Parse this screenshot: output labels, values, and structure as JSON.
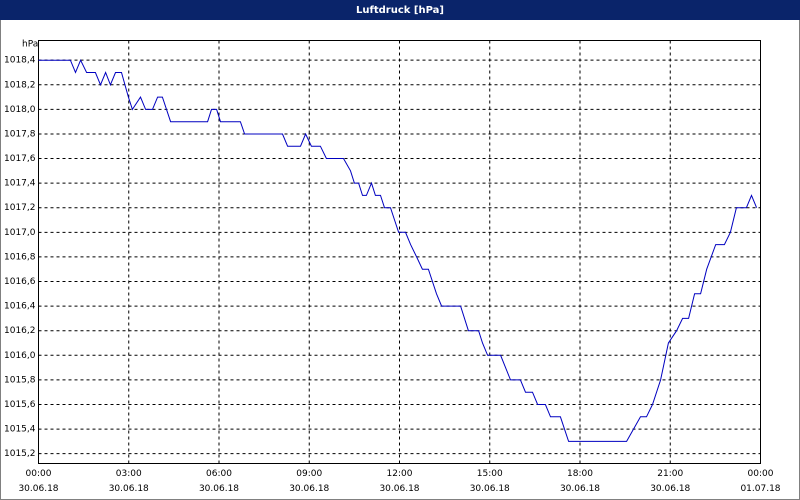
{
  "chart_data": {
    "type": "line",
    "title": "Luftdruck [hPa]",
    "y_label": "hPa",
    "x": [
      0,
      1.06,
      1.23,
      1.4,
      1.6,
      1.89,
      2.06,
      2.23,
      2.39,
      2.56,
      2.76,
      2.99,
      3.12,
      3.39,
      3.56,
      3.79,
      3.96,
      4.12,
      4.39,
      5.62,
      5.75,
      5.92,
      6.05,
      6.71,
      6.85,
      8.11,
      8.28,
      8.71,
      8.88,
      9.07,
      9.37,
      9.57,
      10.14,
      10.37,
      10.5,
      10.64,
      10.77,
      10.9,
      11.07,
      11.2,
      11.37,
      11.5,
      11.7,
      11.97,
      12.2,
      12.37,
      12.57,
      12.76,
      12.96,
      13.23,
      13.4,
      14.03,
      14.29,
      14.63,
      14.76,
      14.93,
      15.36,
      15.69,
      16.02,
      16.19,
      16.42,
      16.59,
      16.85,
      17.02,
      17.35,
      17.62,
      19.55,
      19.78,
      20.01,
      20.21,
      20.41,
      20.68,
      20.94,
      21.21,
      21.41,
      21.61,
      21.81,
      22.01,
      22.21,
      22.51,
      22.8,
      23.0,
      23.2,
      23.53,
      23.7,
      23.87
    ],
    "series": [
      {
        "name": "Luftdruck",
        "color": "#0000c0",
        "values": [
          1018.4,
          1018.4,
          1018.3,
          1018.4,
          1018.3,
          1018.3,
          1018.2,
          1018.3,
          1018.2,
          1018.3,
          1018.3,
          1018.1,
          1018.0,
          1018.1,
          1018.0,
          1018.0,
          1018.1,
          1018.1,
          1017.9,
          1017.9,
          1018.0,
          1018.0,
          1017.9,
          1017.9,
          1017.8,
          1017.8,
          1017.7,
          1017.7,
          1017.8,
          1017.7,
          1017.7,
          1017.6,
          1017.6,
          1017.5,
          1017.4,
          1017.4,
          1017.3,
          1017.3,
          1017.4,
          1017.3,
          1017.3,
          1017.2,
          1017.2,
          1017.0,
          1017.0,
          1016.9,
          1016.8,
          1016.7,
          1016.7,
          1016.5,
          1016.4,
          1016.4,
          1016.2,
          1016.2,
          1016.1,
          1016.0,
          1016.0,
          1015.8,
          1015.8,
          1015.7,
          1015.7,
          1015.6,
          1015.6,
          1015.5,
          1015.5,
          1015.3,
          1015.3,
          1015.4,
          1015.5,
          1015.5,
          1015.6,
          1015.8,
          1016.1,
          1016.2,
          1016.3,
          1016.3,
          1016.5,
          1016.5,
          1016.7,
          1016.9,
          1016.9,
          1017.0,
          1017.2,
          1017.2,
          1017.3,
          1017.2
        ]
      }
    ],
    "xlim": [
      0,
      24
    ],
    "xticks": [
      {
        "value": 0,
        "label": "00:00"
      },
      {
        "value": 3,
        "label": "03:00"
      },
      {
        "value": 6,
        "label": "06:00"
      },
      {
        "value": 9,
        "label": "09:00"
      },
      {
        "value": 12,
        "label": "12:00"
      },
      {
        "value": 15,
        "label": "15:00"
      },
      {
        "value": 18,
        "label": "18:00"
      },
      {
        "value": 21,
        "label": "21:00"
      },
      {
        "value": 24,
        "label": "00:00"
      }
    ],
    "xtick_dates": [
      "30.06.18",
      "30.06.18",
      "30.06.18",
      "30.06.18",
      "30.06.18",
      "30.06.18",
      "30.06.18",
      "30.06.18",
      "01.07.18"
    ],
    "ylim": [
      1015.12,
      1018.56
    ],
    "yticks": [
      {
        "value": 1015.2,
        "label": "1015,2"
      },
      {
        "value": 1015.4,
        "label": "1015,4"
      },
      {
        "value": 1015.6,
        "label": "1015,6"
      },
      {
        "value": 1015.8,
        "label": "1015,8"
      },
      {
        "value": 1016.0,
        "label": "1016,0"
      },
      {
        "value": 1016.2,
        "label": "1016,2"
      },
      {
        "value": 1016.4,
        "label": "1016,4"
      },
      {
        "value": 1016.6,
        "label": "1016,6"
      },
      {
        "value": 1016.8,
        "label": "1016,8"
      },
      {
        "value": 1017.0,
        "label": "1017,0"
      },
      {
        "value": 1017.2,
        "label": "1017,2"
      },
      {
        "value": 1017.4,
        "label": "1017,4"
      },
      {
        "value": 1017.6,
        "label": "1017,6"
      },
      {
        "value": 1017.8,
        "label": "1017,8"
      },
      {
        "value": 1018.0,
        "label": "1018,0"
      },
      {
        "value": 1018.2,
        "label": "1018,2"
      },
      {
        "value": 1018.4,
        "label": "1018,4"
      }
    ],
    "grid": true
  }
}
